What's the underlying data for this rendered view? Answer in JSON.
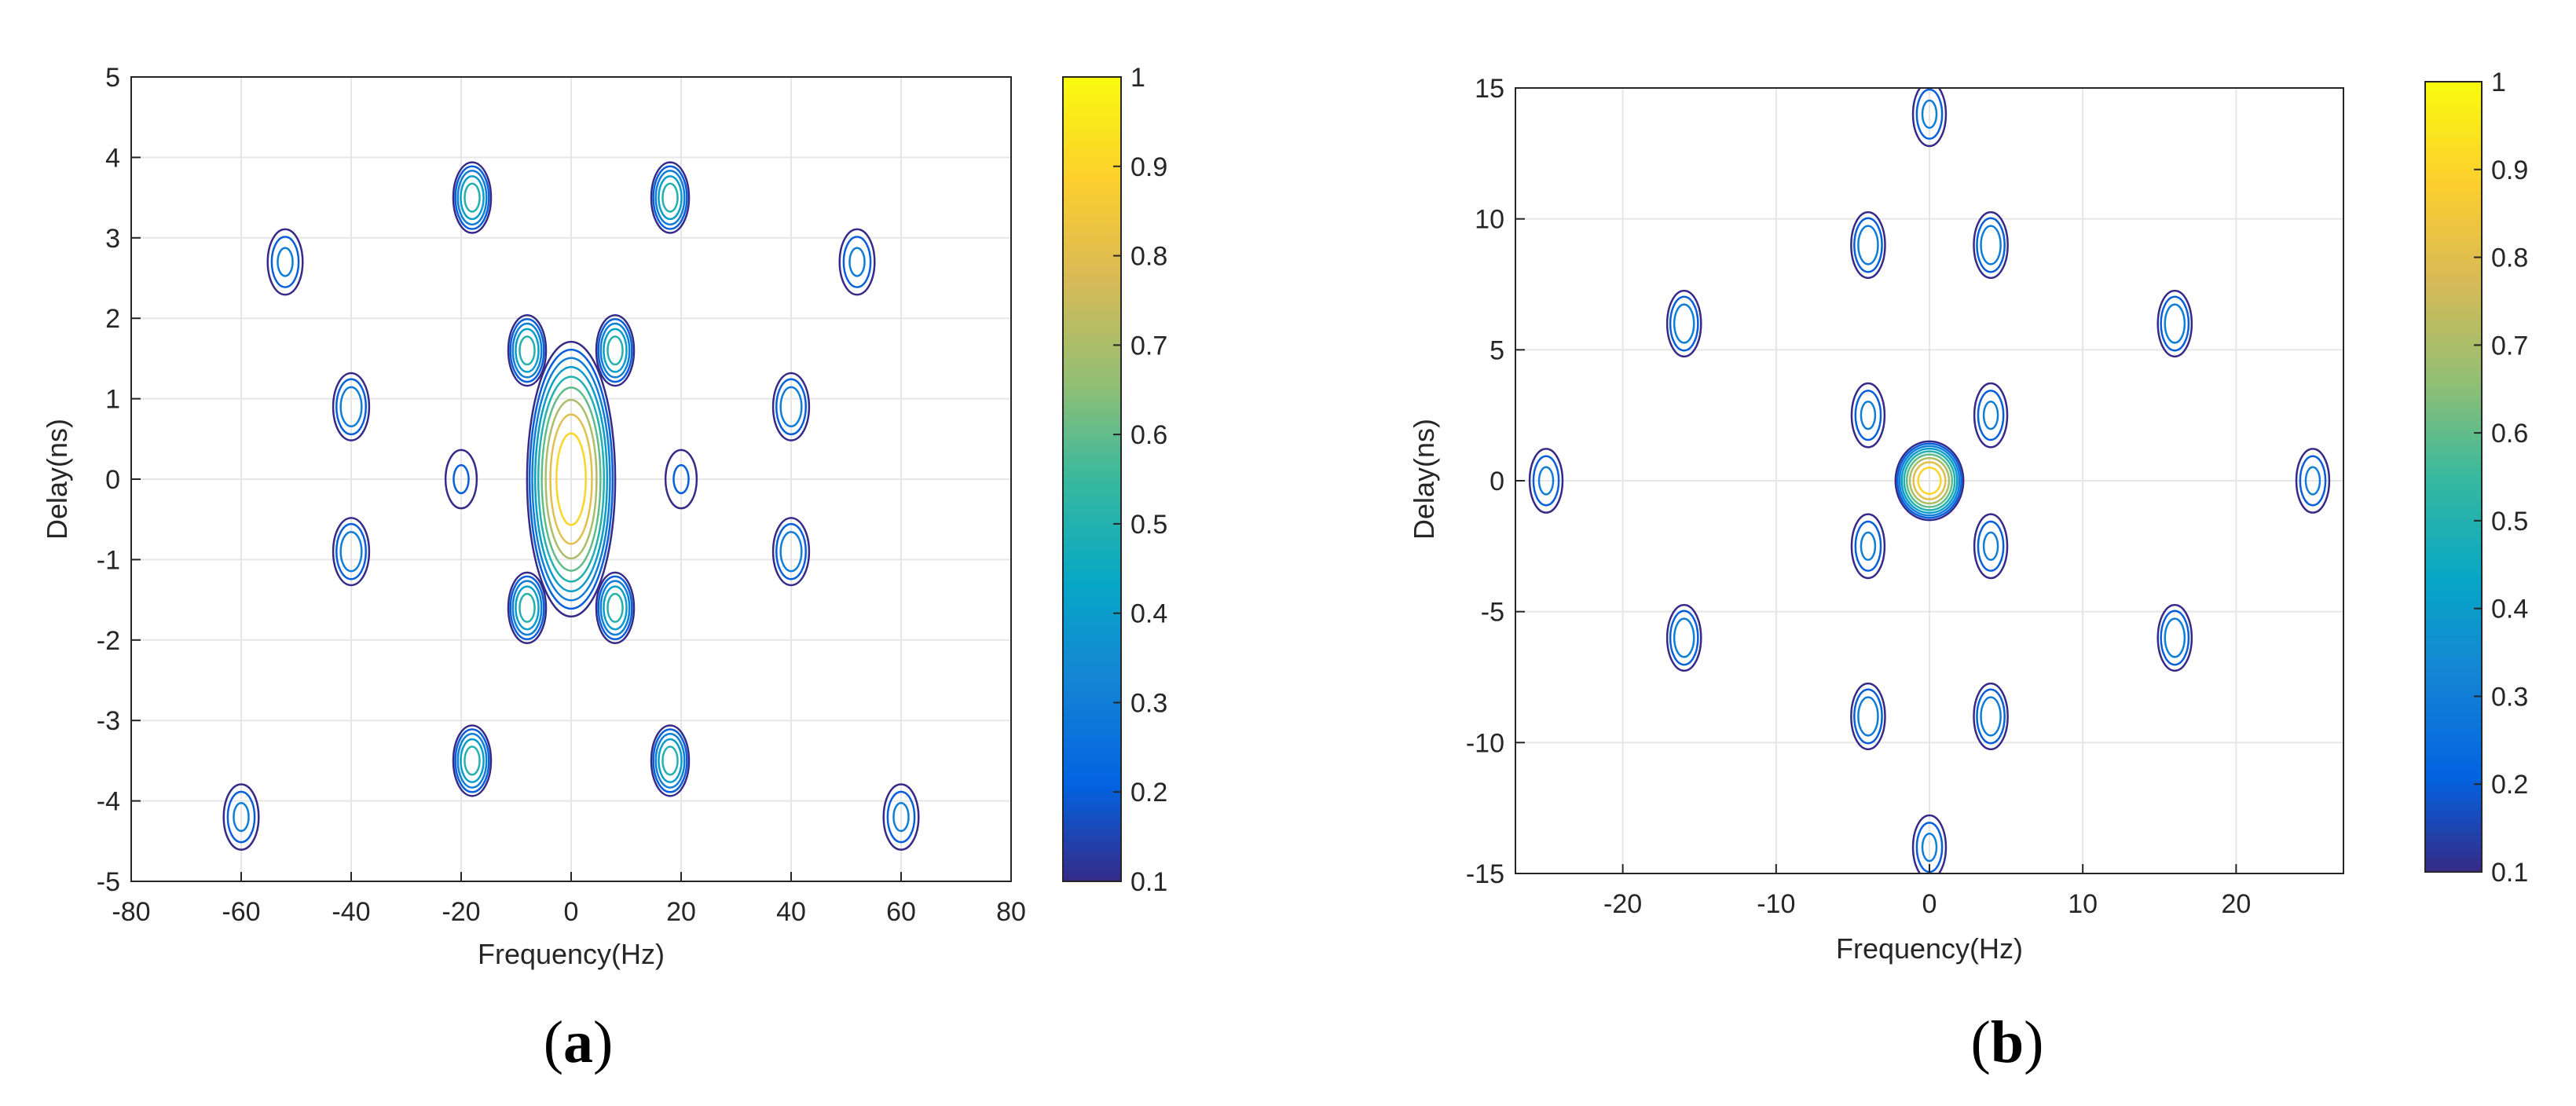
{
  "chart_data": [
    {
      "type": "contour",
      "panel_label": "a",
      "xlabel": "Frequency(Hz)",
      "ylabel": "Delay(ns)",
      "xlim": [
        -80,
        80
      ],
      "ylim": [
        -5,
        5
      ],
      "xticks": [
        -80,
        -60,
        -40,
        -20,
        0,
        20,
        40,
        60,
        80
      ],
      "yticks": [
        -5,
        -4,
        -3,
        -2,
        -1,
        0,
        1,
        2,
        3,
        4,
        5
      ],
      "grid": true,
      "colorbar": {
        "min": 0.1,
        "max": 1,
        "ticks": [
          1,
          0.9,
          0.8,
          0.7,
          0.6,
          0.5,
          0.4,
          0.3,
          0.2,
          0.1
        ],
        "colormap": "parula"
      },
      "contour_levels": [
        0.1,
        0.2,
        0.3,
        0.4,
        0.5,
        0.6,
        0.7,
        0.8,
        0.9
      ],
      "peak": {
        "x": 0,
        "y": 0,
        "value": 1
      },
      "sidelobes": [
        {
          "x": -8,
          "y": 1.6,
          "value": 0.5
        },
        {
          "x": 8,
          "y": 1.6,
          "value": 0.5
        },
        {
          "x": -8,
          "y": -1.6,
          "value": 0.5
        },
        {
          "x": 8,
          "y": -1.6,
          "value": 0.5
        },
        {
          "x": -20,
          "y": 0,
          "value": 0.2
        },
        {
          "x": 20,
          "y": 0,
          "value": 0.2
        },
        {
          "x": -40,
          "y": 0.9,
          "value": 0.35
        },
        {
          "x": 40,
          "y": 0.9,
          "value": 0.35
        },
        {
          "x": -40,
          "y": -0.9,
          "value": 0.35
        },
        {
          "x": 40,
          "y": -0.9,
          "value": 0.35
        },
        {
          "x": -18,
          "y": 3.5,
          "value": 0.5
        },
        {
          "x": 18,
          "y": 3.5,
          "value": 0.5
        },
        {
          "x": -18,
          "y": -3.5,
          "value": 0.5
        },
        {
          "x": 18,
          "y": -3.5,
          "value": 0.5
        },
        {
          "x": -60,
          "y": -4.2,
          "value": 0.3
        },
        {
          "x": 60,
          "y": -4.2,
          "value": 0.3
        },
        {
          "x": -52,
          "y": 2.7,
          "value": 0.3
        },
        {
          "x": 52,
          "y": 2.7,
          "value": 0.3
        }
      ]
    },
    {
      "type": "contour",
      "panel_label": "b",
      "xlabel": "Frequency(Hz)",
      "ylabel": "Delay(ns)",
      "xlim": [
        -27,
        27
      ],
      "ylim": [
        -15,
        15
      ],
      "xticks": [
        -20,
        -10,
        0,
        10,
        20
      ],
      "yticks": [
        -15,
        -10,
        -5,
        0,
        5,
        10,
        15
      ],
      "grid": true,
      "colorbar": {
        "min": 0.1,
        "max": 1,
        "ticks": [
          1,
          0.9,
          0.8,
          0.7,
          0.6,
          0.5,
          0.4,
          0.3,
          0.2,
          0.1
        ],
        "colormap": "parula"
      },
      "contour_levels": [
        0.1,
        0.2,
        0.3,
        0.4,
        0.5,
        0.6,
        0.7,
        0.8,
        0.9
      ],
      "peak": {
        "x": 0,
        "y": 0,
        "value": 1
      },
      "sidelobes": [
        {
          "x": -4,
          "y": 9,
          "value": 0.35
        },
        {
          "x": 4,
          "y": 9,
          "value": 0.35
        },
        {
          "x": -4,
          "y": -9,
          "value": 0.35
        },
        {
          "x": 4,
          "y": -9,
          "value": 0.35
        },
        {
          "x": -16,
          "y": 6,
          "value": 0.35
        },
        {
          "x": 16,
          "y": 6,
          "value": 0.35
        },
        {
          "x": -16,
          "y": -6,
          "value": 0.35
        },
        {
          "x": 16,
          "y": -6,
          "value": 0.35
        },
        {
          "x": -25,
          "y": 0,
          "value": 0.3
        },
        {
          "x": 25,
          "y": 0,
          "value": 0.3
        },
        {
          "x": -4,
          "y": 2.5,
          "value": 0.3
        },
        {
          "x": 4,
          "y": 2.5,
          "value": 0.3
        },
        {
          "x": -4,
          "y": -2.5,
          "value": 0.3
        },
        {
          "x": 4,
          "y": -2.5,
          "value": 0.3
        },
        {
          "x": 0,
          "y": 14,
          "value": 0.3
        },
        {
          "x": 0,
          "y": -14,
          "value": 0.3
        }
      ]
    }
  ]
}
